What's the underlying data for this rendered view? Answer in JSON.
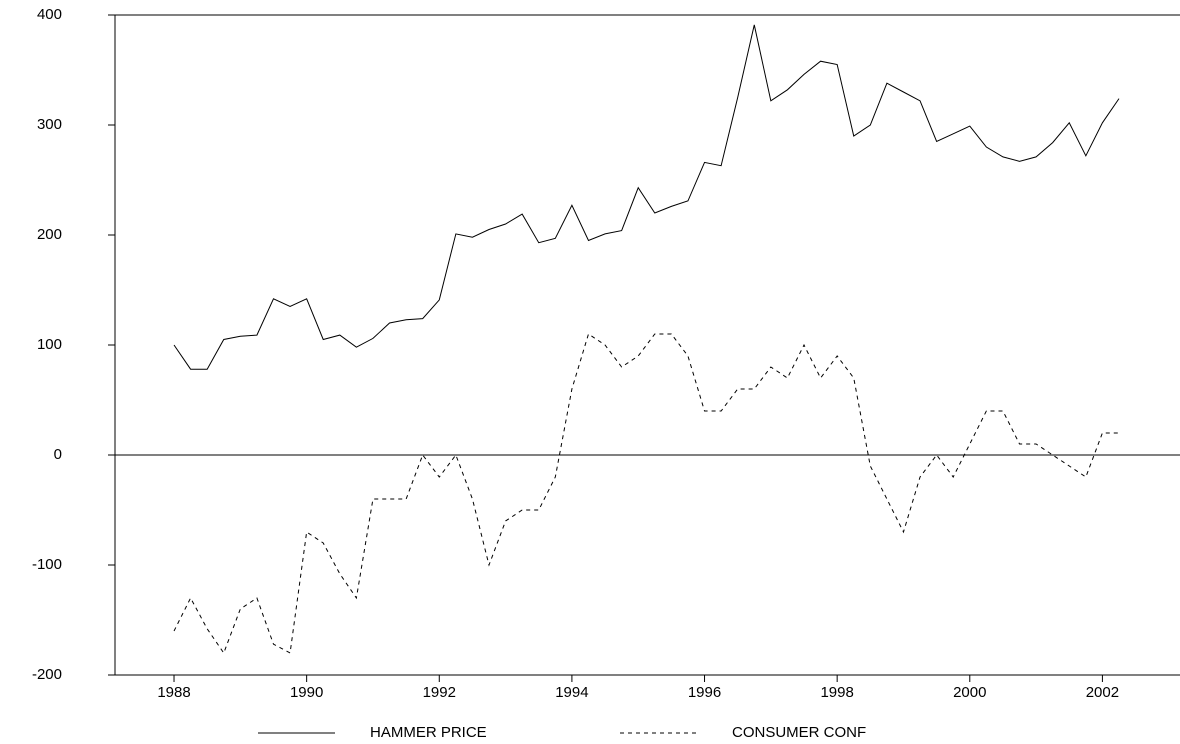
{
  "chart_data": {
    "type": "line",
    "x": [
      1988,
      1988.25,
      1988.5,
      1988.75,
      1989,
      1989.25,
      1989.5,
      1989.75,
      1990,
      1990.25,
      1990.5,
      1990.75,
      1991,
      1991.25,
      1991.5,
      1991.75,
      1992,
      1992.25,
      1992.5,
      1992.75,
      1993,
      1993.25,
      1993.5,
      1993.75,
      1994,
      1994.25,
      1994.5,
      1994.75,
      1995,
      1995.25,
      1995.5,
      1995.75,
      1996,
      1996.25,
      1996.5,
      1996.75,
      1997,
      1997.25,
      1997.5,
      1997.75,
      1998,
      1998.25,
      1998.5,
      1998.75,
      1999,
      1999.25,
      1999.5,
      1999.75,
      2000,
      2000.25,
      2000.5,
      2000.75,
      2001,
      2001.25,
      2001.5,
      2001.75,
      2002,
      2002.25
    ],
    "series": [
      {
        "name": "HAMMER PRICE",
        "color": "#000000",
        "dash": "none",
        "values": [
          100,
          78,
          78,
          105,
          108,
          109,
          142,
          135,
          142,
          105,
          109,
          98,
          106,
          120,
          123,
          124,
          141,
          201,
          198,
          205,
          210,
          219,
          193,
          197,
          227,
          195,
          201,
          204,
          243,
          220,
          226,
          231,
          266,
          263,
          325,
          391,
          322,
          332,
          346,
          358,
          355,
          290,
          300,
          338,
          330,
          322,
          285,
          292,
          299,
          280,
          271,
          267,
          271,
          284,
          302,
          272,
          302,
          324
        ]
      },
      {
        "name": "CONSUMER CONF",
        "color": "#000000",
        "dash": "4,4",
        "values": [
          -160,
          -130,
          -158,
          -180,
          -140,
          -130,
          -172,
          -180,
          -70,
          -80,
          -108,
          -130,
          -40,
          -40,
          -40,
          0,
          -20,
          0,
          -40,
          -100,
          -60,
          -50,
          -50,
          -20,
          60,
          110,
          100,
          80,
          90,
          110,
          110,
          90,
          40,
          40,
          60,
          60,
          80,
          70,
          100,
          70,
          90,
          70,
          -10,
          -40,
          -70,
          -20,
          0,
          -20,
          10,
          40,
          40,
          10,
          10,
          0,
          -10,
          -20,
          20,
          20
        ]
      }
    ],
    "xlim": [
      1987.11,
      2003.17
    ],
    "xticks": [
      1988,
      1990,
      1992,
      1994,
      1996,
      1998,
      2000,
      2002
    ],
    "ylim": [
      -200,
      400
    ],
    "yticks": [
      -200,
      -100,
      0,
      100,
      200,
      300,
      400
    ],
    "zero_line": true,
    "legend": "bottom"
  }
}
